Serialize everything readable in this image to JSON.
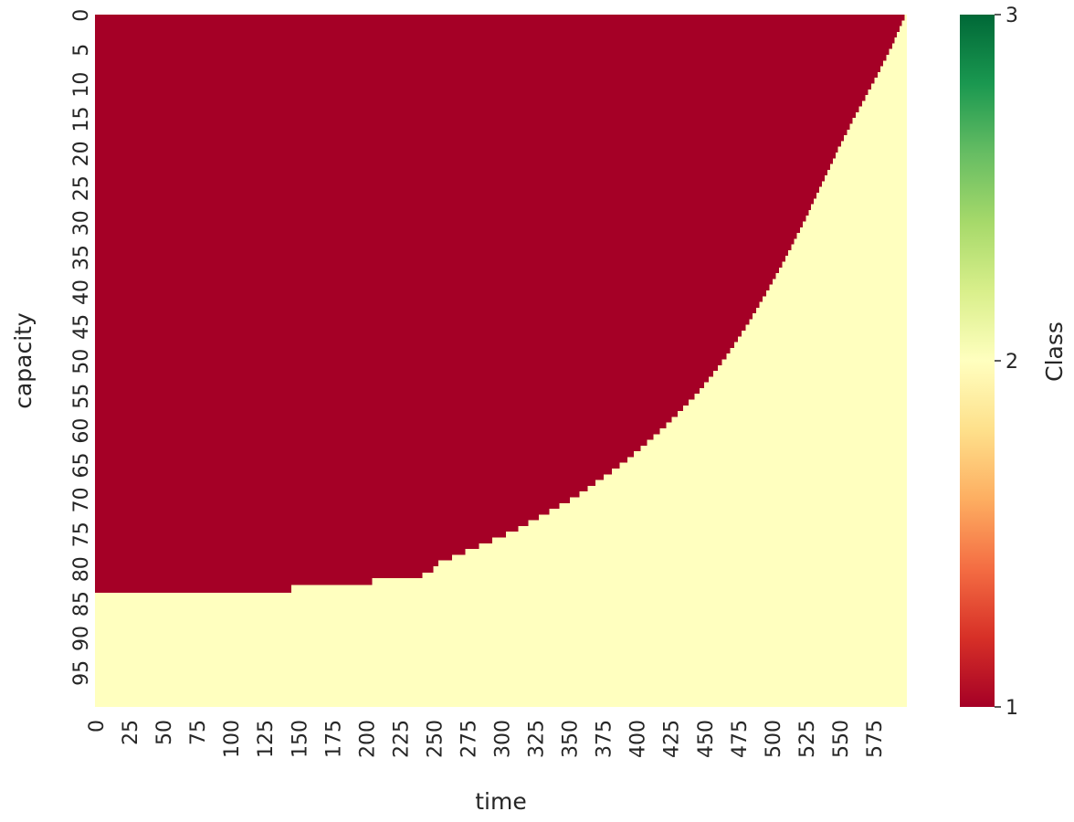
{
  "chart_data": {
    "type": "heatmap",
    "title": "",
    "xlabel": "time",
    "ylabel": "capacity",
    "x_range": [
      0,
      600
    ],
    "y_range": [
      0,
      100
    ],
    "x_ticks": [
      "0",
      "25",
      "50",
      "75",
      "100",
      "125",
      "150",
      "175",
      "200",
      "225",
      "250",
      "275",
      "300",
      "325",
      "350",
      "375",
      "400",
      "425",
      "450",
      "475",
      "500",
      "525",
      "550",
      "575"
    ],
    "y_ticks": [
      "0",
      "5",
      "10",
      "15",
      "20",
      "25",
      "30",
      "35",
      "40",
      "45",
      "50",
      "55",
      "60",
      "65",
      "70",
      "75",
      "80",
      "85",
      "90",
      "95"
    ],
    "colorbar": {
      "label": "Class",
      "min": 1,
      "max": 3,
      "ticks": [
        "1",
        "2",
        "3"
      ],
      "colormap": "RdYlGn",
      "stops": [
        "#a50026",
        "#d73027",
        "#f46d43",
        "#fdae61",
        "#fee08b",
        "#ffffbf",
        "#d9ef8b",
        "#a6d96a",
        "#66bd63",
        "#1a9850",
        "#006837"
      ]
    },
    "classes": [
      {
        "value": 1,
        "color": "#a50026"
      },
      {
        "value": 2,
        "color": "#ffffbf"
      }
    ],
    "boundary": {
      "description_x": "time at which class switches from 1 to 2 for each capacity row",
      "capacity": [
        0,
        5,
        10,
        15,
        20,
        25,
        30,
        35,
        40,
        45,
        50,
        55,
        60,
        65,
        70,
        75,
        80,
        83.5
      ],
      "time": [
        600,
        589,
        576,
        562,
        549,
        537,
        525,
        512,
        498,
        483,
        466,
        446,
        421,
        392,
        356,
        310,
        250,
        0
      ]
    }
  }
}
